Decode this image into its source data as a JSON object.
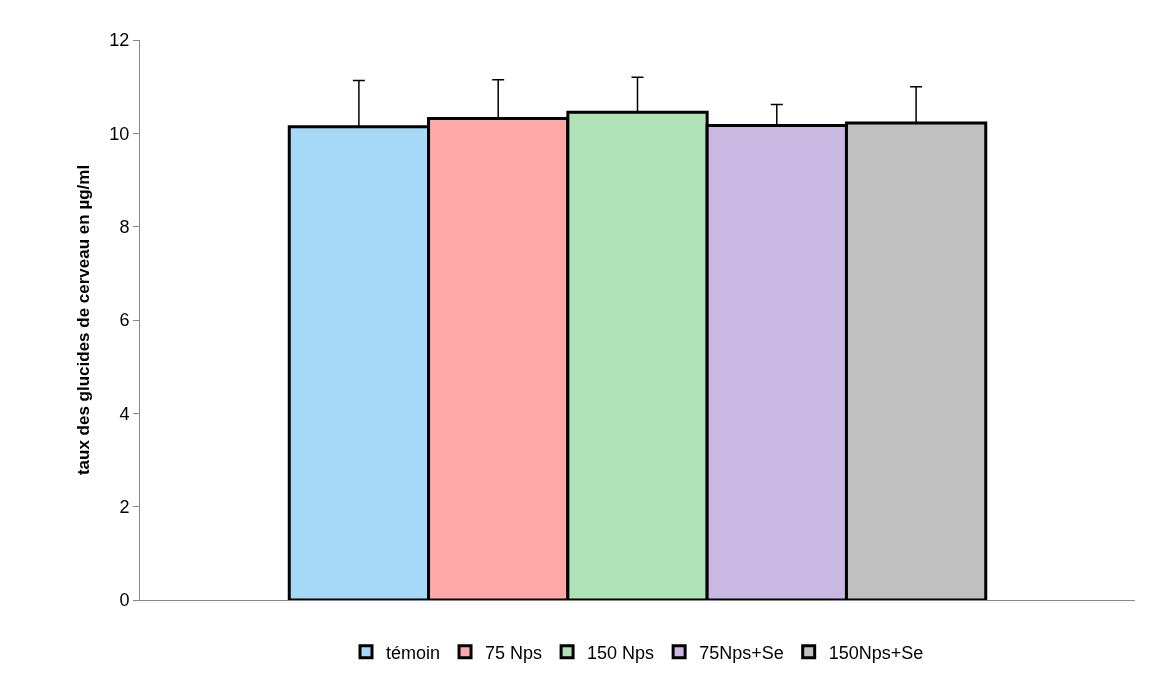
{
  "chart_data": {
    "type": "bar",
    "ylabel": "taux des glucides de cerveau en µg/ml",
    "categories": [
      null
    ],
    "series": [
      {
        "name": "témoin",
        "color": "#a6d8f8",
        "values": [
          10.14
        ],
        "errors": [
          [
            10.14,
            11.13
          ]
        ]
      },
      {
        "name": "75 Nps",
        "color": "#ffa8a8",
        "values": [
          10.32
        ],
        "errors": [
          [
            10.32,
            11.15
          ]
        ]
      },
      {
        "name": "150 Nps",
        "color": "#b0e2b8",
        "values": [
          10.45
        ],
        "errors": [
          [
            10.45,
            11.2
          ]
        ]
      },
      {
        "name": "75Nps+Se",
        "color": "#c8b8e2",
        "values": [
          10.17
        ],
        "errors": [
          [
            10.17,
            10.62
          ]
        ]
      },
      {
        "name": "150Nps+Se",
        "color": "#c0c0c0",
        "values": [
          10.22
        ],
        "errors": [
          [
            10.22,
            11.0
          ]
        ]
      }
    ],
    "ylim": [
      0,
      12
    ],
    "yticks": [
      0,
      2,
      4,
      6,
      8,
      10,
      12
    ],
    "legend": "bottom",
    "tick_labels": "y"
  }
}
